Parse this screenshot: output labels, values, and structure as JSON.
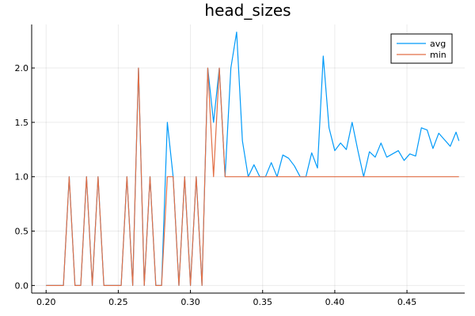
{
  "chart_data": {
    "type": "line",
    "title": "head_sizes",
    "xlabel": "",
    "ylabel": "",
    "xlim": [
      0.19,
      0.49
    ],
    "ylim": [
      -0.07,
      2.4
    ],
    "xticks": [
      0.2,
      0.25,
      0.3,
      0.35,
      0.4,
      0.45
    ],
    "xtick_labels": [
      "0.20",
      "0.25",
      "0.30",
      "0.35",
      "0.40",
      "0.45"
    ],
    "yticks": [
      0.0,
      0.5,
      1.0,
      1.5,
      2.0
    ],
    "ytick_labels": [
      "0.0",
      "0.5",
      "1.0",
      "1.5",
      "2.0"
    ],
    "grid": true,
    "legend_position": "top-right",
    "x": [
      0.2,
      0.204,
      0.208,
      0.212,
      0.216,
      0.22,
      0.224,
      0.228,
      0.232,
      0.236,
      0.24,
      0.244,
      0.248,
      0.252,
      0.256,
      0.26,
      0.264,
      0.268,
      0.272,
      0.276,
      0.28,
      0.284,
      0.288,
      0.292,
      0.296,
      0.3,
      0.304,
      0.308,
      0.312,
      0.316,
      0.32,
      0.324,
      0.328,
      0.332,
      0.336,
      0.34,
      0.344,
      0.348,
      0.352,
      0.356,
      0.36,
      0.364,
      0.368,
      0.372,
      0.376,
      0.38,
      0.384,
      0.388,
      0.392,
      0.396,
      0.4,
      0.404,
      0.408,
      0.412,
      0.416,
      0.42,
      0.424,
      0.428,
      0.432,
      0.436,
      0.44,
      0.444,
      0.448,
      0.452,
      0.456,
      0.46,
      0.464,
      0.468,
      0.472,
      0.476,
      0.48,
      0.484,
      0.486
    ],
    "series": [
      {
        "name": "avg",
        "color": "#009af9",
        "values": [
          0,
          0,
          0,
          0,
          1,
          0,
          0,
          1,
          0,
          1,
          0,
          0,
          0,
          0,
          1,
          0,
          2,
          0,
          1,
          0,
          0,
          1.5,
          1,
          0,
          1,
          0,
          1,
          0,
          2,
          1.5,
          2,
          1,
          2,
          2.33,
          1.33,
          1,
          1.11,
          1,
          1,
          1.13,
          1,
          1.2,
          1.17,
          1.1,
          1,
          1,
          1.22,
          1.08,
          2.11,
          1.45,
          1.24,
          1.31,
          1.25,
          1.5,
          1.24,
          1,
          1.23,
          1.18,
          1.31,
          1.18,
          1.21,
          1.24,
          1.15,
          1.21,
          1.19,
          1.45,
          1.43,
          1.26,
          1.4,
          1.34,
          1.28,
          1.41,
          1.33
        ]
      },
      {
        "name": "min",
        "color": "#e26f46",
        "values": [
          0,
          0,
          0,
          0,
          1,
          0,
          0,
          1,
          0,
          1,
          0,
          0,
          0,
          0,
          1,
          0,
          2,
          0,
          1,
          0,
          0,
          1,
          1,
          0,
          1,
          0,
          1,
          0,
          2,
          1,
          2,
          1,
          1,
          1,
          1,
          1,
          1,
          1,
          1,
          1,
          1,
          1,
          1,
          1,
          1,
          1,
          1,
          1,
          1,
          1,
          1,
          1,
          1,
          1,
          1,
          1,
          1,
          1,
          1,
          1,
          1,
          1,
          1,
          1,
          1,
          1,
          1,
          1,
          1,
          1,
          1,
          1,
          1
        ]
      }
    ]
  }
}
